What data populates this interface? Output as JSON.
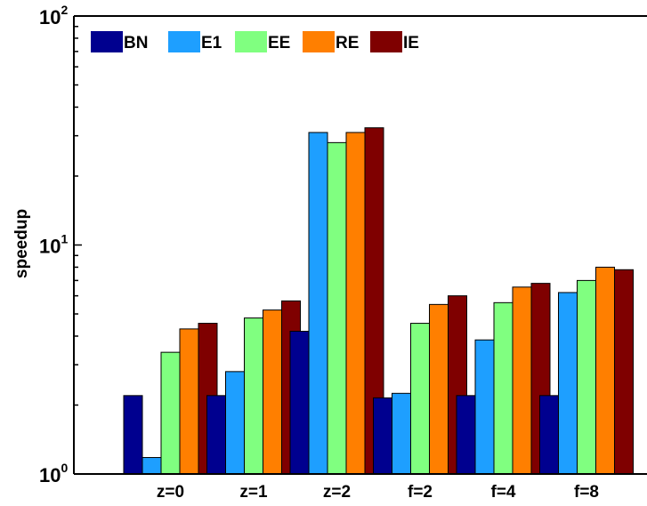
{
  "chart_data": {
    "type": "bar",
    "title": "",
    "xlabel": "",
    "ylabel": "speedup",
    "yscale": "log",
    "ylim": [
      1,
      100
    ],
    "yticks": [
      {
        "base": "10",
        "exp": "0"
      },
      {
        "base": "10",
        "exp": "1"
      },
      {
        "base": "10",
        "exp": "2"
      }
    ],
    "grid": false,
    "legend_position": "top-left",
    "categories": [
      "z=0",
      "z=1",
      "z=2",
      "f=2",
      "f=4",
      "f=8"
    ],
    "series": [
      {
        "name": "BN",
        "color": "#00008f",
        "values": [
          2.2,
          2.2,
          4.2,
          2.15,
          2.2,
          2.2
        ]
      },
      {
        "name": "E1",
        "color": "#1e9fff",
        "values": [
          1.18,
          2.8,
          31,
          2.25,
          3.85,
          6.2
        ]
      },
      {
        "name": "EE",
        "color": "#80ff80",
        "values": [
          3.4,
          4.8,
          28,
          4.55,
          5.6,
          7.0
        ]
      },
      {
        "name": "RE",
        "color": "#ff7f00",
        "values": [
          4.3,
          5.2,
          31,
          5.5,
          6.55,
          8.0
        ]
      },
      {
        "name": "IE",
        "color": "#7f0000",
        "values": [
          4.55,
          5.7,
          32.5,
          6.0,
          6.8,
          7.8
        ]
      }
    ]
  }
}
